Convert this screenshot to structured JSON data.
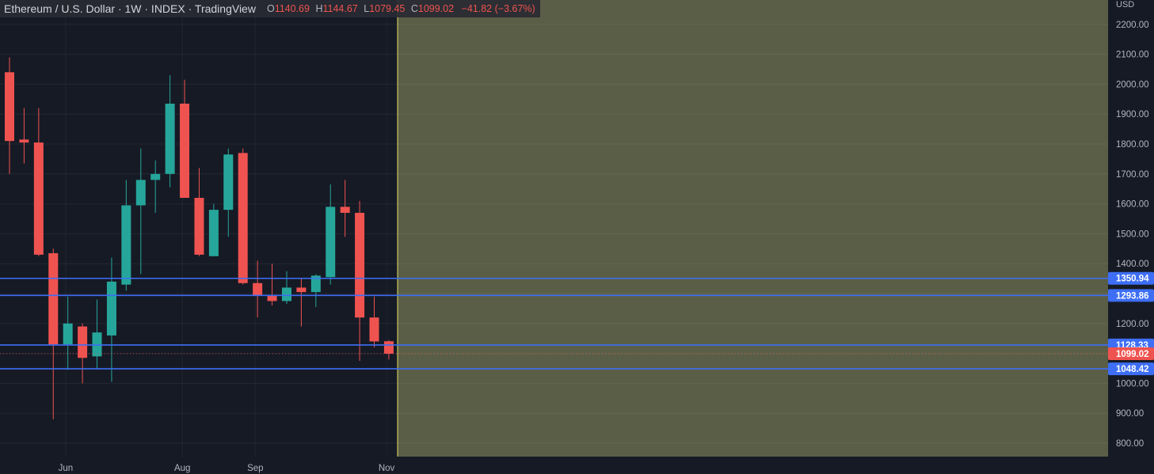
{
  "header": {
    "title": "Ethereum / U.S. Dollar · 1W · INDEX · TradingView",
    "o_label": "O",
    "o_value": "1140.69",
    "h_label": "H",
    "h_value": "1144.67",
    "l_label": "L",
    "l_value": "1079.45",
    "c_label": "C",
    "c_value": "1099.02",
    "change": "−41.82 (−3.67%)"
  },
  "colors": {
    "background": "#161a25",
    "up": "#26a69a",
    "down": "#ef5350",
    "level_line": "#3d6ef5",
    "future_zone": "#5b5e46",
    "marker_line": "#e3e35a",
    "grid": "#262a35",
    "text": "#b2b5be"
  },
  "chart_data": {
    "type": "candlestick",
    "title": "Ethereum / U.S. Dollar · 1W · INDEX · TradingView",
    "currency": "USD",
    "ylim": [
      740,
      2280
    ],
    "y_ticks": [
      800,
      900,
      1000,
      1100,
      1200,
      1300,
      1400,
      1500,
      1600,
      1700,
      1800,
      1900,
      2000,
      2100,
      2200
    ],
    "y_tick_labels": [
      "800.00",
      "900.00",
      "1000.00",
      "",
      "1200.00",
      "",
      "1400.00",
      "1500.00",
      "1600.00",
      "1700.00",
      "1800.00",
      "1900.00",
      "2000.00",
      "2100.00",
      "2200.00"
    ],
    "x_labels": [
      {
        "label": "Jun",
        "index": 2
      },
      {
        "label": "Aug",
        "index": 10
      },
      {
        "label": "Sep",
        "index": 15
      },
      {
        "label": "Nov",
        "index": 24
      }
    ],
    "candles": [
      {
        "o": 2040,
        "h": 2090,
        "l": 1700,
        "c": 1810
      },
      {
        "o": 1815,
        "h": 1920,
        "l": 1735,
        "c": 1805
      },
      {
        "o": 1805,
        "h": 1920,
        "l": 1425,
        "c": 1430
      },
      {
        "o": 1435,
        "h": 1450,
        "l": 880,
        "c": 1130
      },
      {
        "o": 1130,
        "h": 1290,
        "l": 1045,
        "c": 1200
      },
      {
        "o": 1190,
        "h": 1200,
        "l": 1000,
        "c": 1085
      },
      {
        "o": 1090,
        "h": 1280,
        "l": 1050,
        "c": 1170
      },
      {
        "o": 1160,
        "h": 1420,
        "l": 1005,
        "c": 1340
      },
      {
        "o": 1330,
        "h": 1680,
        "l": 1310,
        "c": 1595
      },
      {
        "o": 1595,
        "h": 1785,
        "l": 1365,
        "c": 1680
      },
      {
        "o": 1680,
        "h": 1745,
        "l": 1570,
        "c": 1700
      },
      {
        "o": 1700,
        "h": 2030,
        "l": 1655,
        "c": 1935
      },
      {
        "o": 1935,
        "h": 2015,
        "l": 1620,
        "c": 1620
      },
      {
        "o": 1620,
        "h": 1720,
        "l": 1425,
        "c": 1430
      },
      {
        "o": 1425,
        "h": 1600,
        "l": 1425,
        "c": 1580
      },
      {
        "o": 1580,
        "h": 1785,
        "l": 1490,
        "c": 1765
      },
      {
        "o": 1770,
        "h": 1785,
        "l": 1330,
        "c": 1335
      },
      {
        "o": 1335,
        "h": 1410,
        "l": 1220,
        "c": 1295
      },
      {
        "o": 1295,
        "h": 1400,
        "l": 1260,
        "c": 1275
      },
      {
        "o": 1275,
        "h": 1375,
        "l": 1265,
        "c": 1320
      },
      {
        "o": 1320,
        "h": 1350,
        "l": 1190,
        "c": 1305
      },
      {
        "o": 1305,
        "h": 1365,
        "l": 1255,
        "c": 1360
      },
      {
        "o": 1355,
        "h": 1665,
        "l": 1330,
        "c": 1590
      },
      {
        "o": 1590,
        "h": 1680,
        "l": 1490,
        "c": 1570
      },
      {
        "o": 1570,
        "h": 1610,
        "l": 1075,
        "c": 1220
      },
      {
        "o": 1220,
        "h": 1290,
        "l": 1120,
        "c": 1140
      },
      {
        "o": 1140.69,
        "h": 1144.67,
        "l": 1079.45,
        "c": 1099.02
      }
    ],
    "horizontal_levels": [
      1350.94,
      1293.86,
      1128.33,
      1048.42
    ],
    "level_labels": [
      "1350.94",
      "1293.86",
      "1128.33",
      "1048.42"
    ],
    "last_price": 1099.02,
    "last_price_label": "1099.02"
  }
}
